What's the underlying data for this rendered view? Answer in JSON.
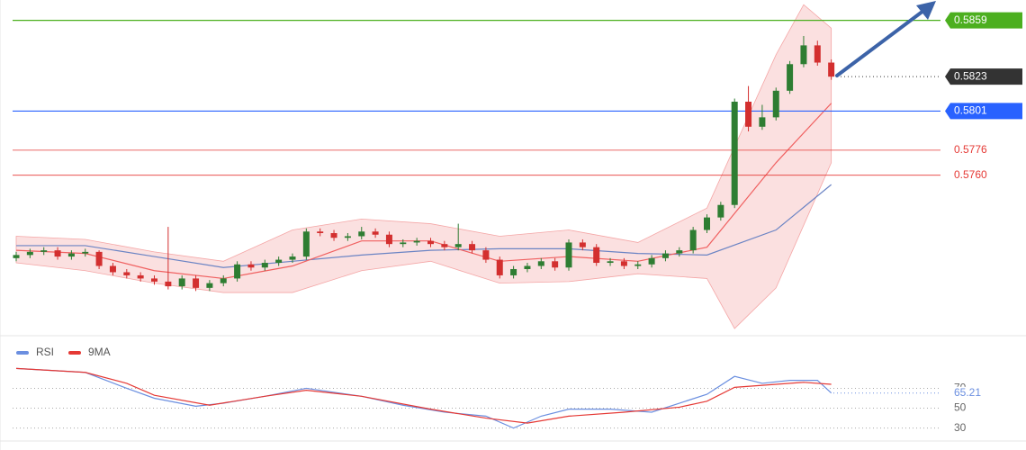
{
  "chart_data": [
    {
      "type": "candlestick",
      "ylim": [
        0.5658,
        0.5872
      ],
      "up_color": "#2e7d32",
      "down_color": "#d32f2f",
      "candles": [
        [
          0.5707,
          0.5711,
          0.5705,
          0.5709
        ],
        [
          0.5709,
          0.5713,
          0.5707,
          0.5711
        ],
        [
          0.5711,
          0.5714,
          0.5709,
          0.5712
        ],
        [
          0.5712,
          0.5714,
          0.5706,
          0.5708
        ],
        [
          0.5708,
          0.5712,
          0.5706,
          0.571
        ],
        [
          0.571,
          0.5713,
          0.5708,
          0.5711
        ],
        [
          0.5711,
          0.5712,
          0.57,
          0.5702
        ],
        [
          0.5702,
          0.5704,
          0.5696,
          0.5698
        ],
        [
          0.5698,
          0.57,
          0.5694,
          0.5696
        ],
        [
          0.5696,
          0.5698,
          0.5692,
          0.5694
        ],
        [
          0.5694,
          0.5696,
          0.569,
          0.5692
        ],
        [
          0.5692,
          0.5727,
          0.5687,
          0.5689
        ],
        [
          0.5689,
          0.5696,
          0.5687,
          0.5694
        ],
        [
          0.5694,
          0.5696,
          0.5686,
          0.5688
        ],
        [
          0.5688,
          0.5693,
          0.5686,
          0.5691
        ],
        [
          0.5691,
          0.5696,
          0.5689,
          0.5694
        ],
        [
          0.5694,
          0.5705,
          0.5692,
          0.5703
        ],
        [
          0.5703,
          0.5705,
          0.5699,
          0.5701
        ],
        [
          0.5701,
          0.5706,
          0.5699,
          0.5704
        ],
        [
          0.5704,
          0.5708,
          0.5702,
          0.5706
        ],
        [
          0.5706,
          0.571,
          0.5704,
          0.5708
        ],
        [
          0.5708,
          0.5726,
          0.5706,
          0.5724
        ],
        [
          0.5724,
          0.5726,
          0.5721,
          0.5723
        ],
        [
          0.5723,
          0.5725,
          0.5718,
          0.572
        ],
        [
          0.572,
          0.5723,
          0.5718,
          0.5721
        ],
        [
          0.5721,
          0.5727,
          0.5719,
          0.5724
        ],
        [
          0.5724,
          0.5726,
          0.572,
          0.5722
        ],
        [
          0.5722,
          0.5724,
          0.5714,
          0.5716
        ],
        [
          0.5716,
          0.5719,
          0.5714,
          0.5717
        ],
        [
          0.5717,
          0.572,
          0.5715,
          0.5718
        ],
        [
          0.5718,
          0.572,
          0.5714,
          0.5716
        ],
        [
          0.5716,
          0.5718,
          0.5712,
          0.5714
        ],
        [
          0.5714,
          0.5729,
          0.5712,
          0.5716
        ],
        [
          0.5716,
          0.5718,
          0.571,
          0.5712
        ],
        [
          0.5712,
          0.5714,
          0.5704,
          0.5706
        ],
        [
          0.5706,
          0.5708,
          0.5694,
          0.5696
        ],
        [
          0.5696,
          0.5702,
          0.5694,
          0.57
        ],
        [
          0.57,
          0.5704,
          0.5698,
          0.5702
        ],
        [
          0.5702,
          0.5707,
          0.57,
          0.5705
        ],
        [
          0.5705,
          0.5707,
          0.5699,
          0.5701
        ],
        [
          0.5701,
          0.5719,
          0.5699,
          0.5717
        ],
        [
          0.5717,
          0.5719,
          0.5712,
          0.5714
        ],
        [
          0.5714,
          0.5716,
          0.5702,
          0.5704
        ],
        [
          0.5704,
          0.5707,
          0.5702,
          0.5705
        ],
        [
          0.5705,
          0.5707,
          0.57,
          0.5702
        ],
        [
          0.5702,
          0.5705,
          0.57,
          0.5703
        ],
        [
          0.5703,
          0.5709,
          0.5701,
          0.5707
        ],
        [
          0.5707,
          0.5712,
          0.5705,
          0.571
        ],
        [
          0.571,
          0.5714,
          0.5708,
          0.5712
        ],
        [
          0.5712,
          0.5727,
          0.571,
          0.5725
        ],
        [
          0.5725,
          0.5735,
          0.5723,
          0.5733
        ],
        [
          0.5733,
          0.5743,
          0.5731,
          0.5741
        ],
        [
          0.5741,
          0.5809,
          0.5739,
          0.5807
        ],
        [
          0.5807,
          0.5817,
          0.5788,
          0.5791
        ],
        [
          0.5791,
          0.5805,
          0.5789,
          0.5797
        ],
        [
          0.5797,
          0.5816,
          0.5795,
          0.5814
        ],
        [
          0.5814,
          0.5833,
          0.5812,
          0.5831
        ],
        [
          0.5831,
          0.5849,
          0.5829,
          0.5843
        ],
        [
          0.5843,
          0.5846,
          0.583,
          0.5832
        ],
        [
          0.5832,
          0.5834,
          0.5821,
          0.5823
        ]
      ],
      "band": {
        "color": "#f4a6a6",
        "upper": {
          "x": [
            0,
            5,
            10,
            15,
            20,
            25,
            30,
            35,
            40,
            45,
            50,
            55,
            57,
            59
          ],
          "values": [
            0.5721,
            0.5719,
            0.5711,
            0.5705,
            0.5725,
            0.5732,
            0.5729,
            0.5721,
            0.5725,
            0.5717,
            0.5739,
            0.5837,
            0.5869,
            0.5854
          ]
        },
        "lower": {
          "x": [
            0,
            5,
            10,
            15,
            20,
            25,
            30,
            35,
            40,
            45,
            50,
            52,
            55,
            59
          ],
          "values": [
            0.5704,
            0.5699,
            0.5691,
            0.5685,
            0.5685,
            0.5699,
            0.5705,
            0.5691,
            0.5692,
            0.5697,
            0.5694,
            0.5662,
            0.5688,
            0.5768
          ]
        }
      },
      "overlays": [
        {
          "color": "#6b84c4",
          "x": [
            0,
            5,
            10,
            15,
            20,
            25,
            30,
            35,
            40,
            45,
            50,
            55,
            59
          ],
          "values": [
            0.5715,
            0.5715,
            0.5708,
            0.5701,
            0.5705,
            0.5709,
            0.5712,
            0.5713,
            0.5713,
            0.571,
            0.5709,
            0.5725,
            0.5754
          ]
        },
        {
          "color": "#f06060",
          "x": [
            0,
            5,
            10,
            15,
            20,
            25,
            30,
            35,
            40,
            45,
            50,
            55,
            59
          ],
          "values": [
            0.5712,
            0.571,
            0.5699,
            0.5694,
            0.5702,
            0.5718,
            0.5718,
            0.5705,
            0.5708,
            0.5705,
            0.5714,
            0.5768,
            0.5806
          ]
        }
      ],
      "levels": [
        {
          "value": 0.5859,
          "label": "0.5859",
          "color": "#4caf1f",
          "style": "box"
        },
        {
          "value": 0.5823,
          "label": "0.5823",
          "color": "#333333",
          "style": "box-dotted"
        },
        {
          "value": 0.5801,
          "label": "0.5801",
          "color": "#2962ff",
          "style": "box"
        },
        {
          "value": 0.5776,
          "label": "0.5776",
          "color": "#e53935",
          "style": "text"
        },
        {
          "value": 0.576,
          "label": "0.5760",
          "color": "#e53935",
          "style": "text"
        }
      ]
    },
    {
      "type": "line",
      "ylim": [
        17,
        103
      ],
      "yticks": [
        70,
        50,
        30
      ],
      "current": 65.21,
      "series": [
        {
          "name": "RSI",
          "color": "#6b8fe0",
          "x": [
            0,
            5,
            8,
            10,
            13,
            15,
            18,
            21,
            25,
            28,
            31,
            34,
            36,
            38,
            40,
            43,
            46,
            48,
            50,
            52,
            54,
            56,
            58,
            59
          ],
          "values": [
            90,
            86,
            70,
            60,
            52,
            55,
            62,
            70,
            62,
            53,
            46,
            42,
            30,
            42,
            49,
            49,
            46,
            55,
            64,
            82,
            75,
            78,
            78,
            65.21
          ]
        },
        {
          "name": "9MA",
          "color": "#e53935",
          "x": [
            0,
            5,
            8,
            10,
            14,
            18,
            21,
            25,
            30,
            34,
            37,
            40,
            44,
            48,
            50,
            52,
            54,
            57,
            59
          ],
          "values": [
            90,
            86,
            75,
            63,
            53,
            62,
            68,
            62,
            49,
            40,
            35,
            42,
            46,
            51,
            57,
            71,
            73,
            76,
            74
          ]
        }
      ]
    }
  ]
}
